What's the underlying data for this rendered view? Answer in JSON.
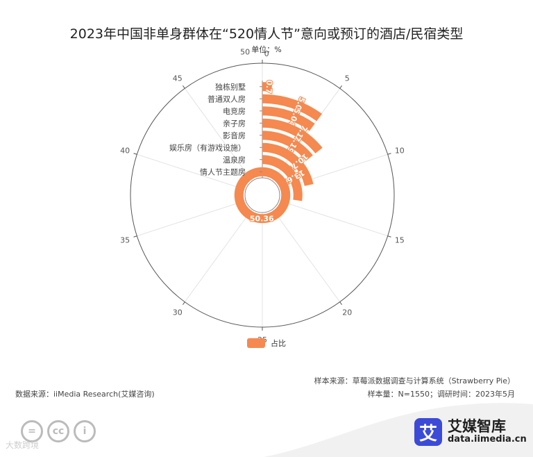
{
  "chart_data": {
    "type": "polar-bar",
    "title": "2023年中国非单身群体在“520情人节”意向或预订的酒店/民宿类型",
    "unit": "单位：%",
    "angle_axis": {
      "min": 0,
      "max": 50,
      "ticks": [
        0,
        5,
        10,
        15,
        20,
        25,
        30,
        35,
        40,
        45,
        50
      ]
    },
    "categories": [
      "独栋别墅",
      "普通双人房",
      "电竞房",
      "亲子房",
      "影音房",
      "娱乐房（有游戏设施）",
      "温泉房",
      "情人节主题房"
    ],
    "series": [
      {
        "name": "占比",
        "values": [
          0.7,
          5.04,
          5.04,
          7.19,
          7.19,
          10.79,
          13.67,
          50.36
        ],
        "color": "#f5894f"
      }
    ],
    "data_labels": [
      "0.7",
      "5.04",
      "5.04",
      "7.19",
      "7.19",
      "10.79",
      "13.67",
      "50.36"
    ],
    "legend": {
      "position": "bottom",
      "label": "占比"
    }
  },
  "footer": {
    "source_left": "数据来源：iiMedia Research(艾媒咨询)",
    "sample_source": "样本来源：草莓派数据调查与计算系统（Strawberry Pie）",
    "sample_info": "样本量：N=1550；调研时间：2023年5月",
    "watermark": "大数跨境",
    "brand_name": "艾媒智库",
    "brand_url": "data.iimedia.cn",
    "brand_logo_char": "艾",
    "cc_icons": [
      "=",
      "cc",
      "i"
    ]
  }
}
